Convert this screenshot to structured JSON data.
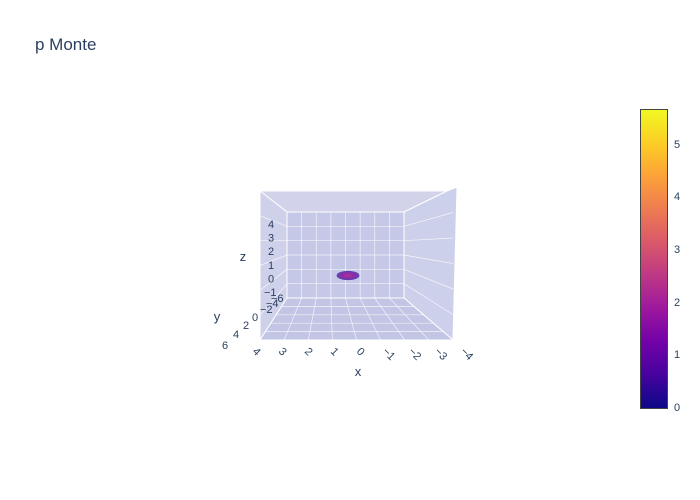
{
  "chart_data": {
    "type": "surface",
    "title": "p Monte",
    "xlabel": "x",
    "ylabel": "y",
    "zlabel": "z",
    "x_ticks": [
      "4",
      "3",
      "2",
      "1",
      "0",
      "−1",
      "−2",
      "−3",
      "−4"
    ],
    "y_ticks": [
      "6",
      "4",
      "2",
      "0",
      "−2",
      "−4",
      "−6"
    ],
    "z_ticks": [
      "4",
      "3",
      "2",
      "1",
      "0",
      "−1"
    ],
    "xlim": [
      -4,
      4
    ],
    "ylim": [
      -6,
      6
    ],
    "zlim": [
      -1,
      4
    ],
    "colorscale": "plasma",
    "colorbar_ticks": [
      "5",
      "4",
      "3",
      "2",
      "1",
      "0"
    ],
    "colorbar_range": [
      0,
      5.7
    ],
    "surface_extent": {
      "x": [
        -0.4,
        0.4
      ],
      "y": [
        -0.2,
        0.2
      ],
      "z": 0
    }
  },
  "colors": {
    "wall": "#c7c9e6",
    "grid": "#ffffff",
    "surface_center": "#9c179e",
    "surface_edge": "#7a4bb0"
  }
}
